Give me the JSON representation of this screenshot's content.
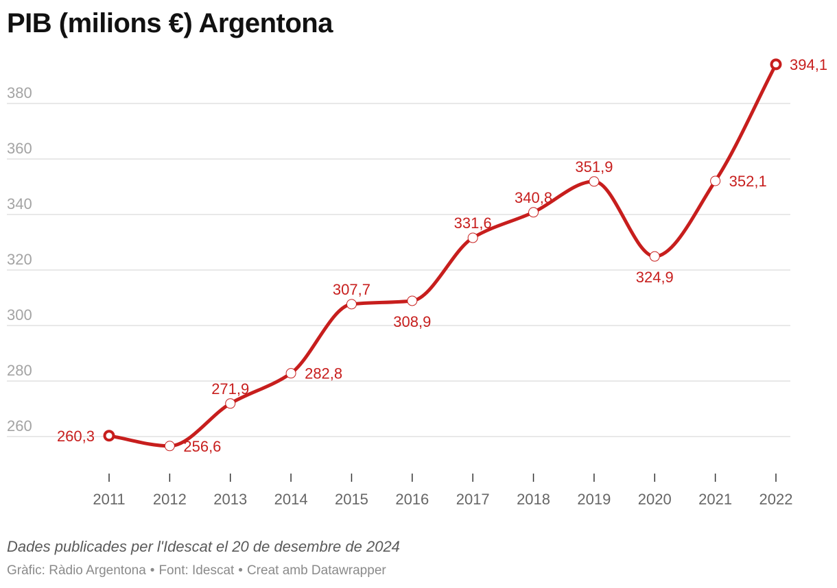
{
  "title": "PIB (milions €) Argentona",
  "notes": "Dades publicades per l'Idescat el 20 de desembre de 2024",
  "footer": {
    "graphic": "Gràfic: Ràdio Argentona",
    "separator": "•",
    "source": "Font: Idescat",
    "tool": "Creat amb Datawrapper"
  },
  "colors": {
    "line": "#c71e1d",
    "grid": "#e0e0e0",
    "tick_label": "#a3a3a3",
    "axis_label": "#666666"
  },
  "chart_data": {
    "type": "line",
    "title": "PIB (milions €) Argentona",
    "xlabel": "",
    "ylabel": "",
    "ylim": [
      246,
      396
    ],
    "yticks": [
      260,
      280,
      300,
      320,
      340,
      360,
      380
    ],
    "grid": true,
    "categories": [
      "2011",
      "2012",
      "2013",
      "2014",
      "2015",
      "2016",
      "2017",
      "2018",
      "2019",
      "2020",
      "2021",
      "2022"
    ],
    "series": [
      {
        "name": "PIB (milions €)",
        "values": [
          260.3,
          256.6,
          271.9,
          282.8,
          307.7,
          308.9,
          331.6,
          340.8,
          351.9,
          324.9,
          352.1,
          394.1
        ],
        "labels": [
          "260,3",
          "256,6",
          "271,9",
          "282,8",
          "307,7",
          "308,9",
          "331,6",
          "340,8",
          "351,9",
          "324,9",
          "352,1",
          "394,1"
        ]
      }
    ]
  }
}
